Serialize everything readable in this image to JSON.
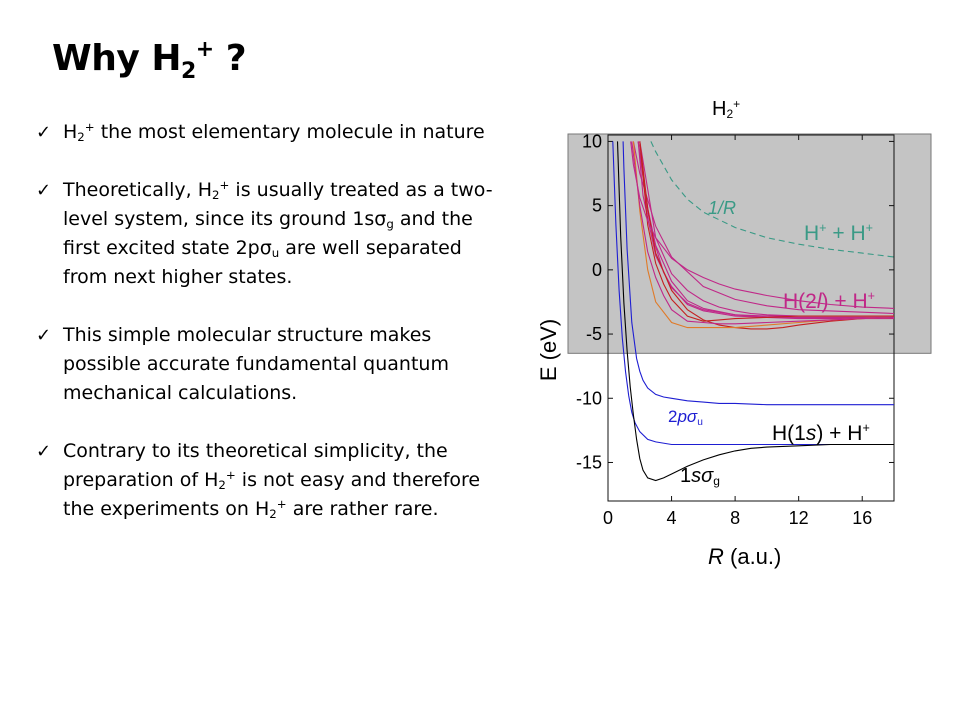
{
  "slide": {
    "title": {
      "pre": "Why H",
      "sub": "2",
      "sup": "+",
      "post": " ?"
    }
  },
  "bullets": [
    {
      "parts": [
        {
          "t": "H"
        },
        {
          "sub": "2"
        },
        {
          "sup": "+"
        },
        {
          "t": " the most elementary molecule in nature"
        }
      ]
    },
    {
      "parts": [
        {
          "t": "Theoretically, H"
        },
        {
          "sub": "2"
        },
        {
          "sup": "+"
        },
        {
          "t": " is usually treated as a two-level system, since its ground 1sσ"
        },
        {
          "sub": "g"
        },
        {
          "t": " and the first excited state 2pσ"
        },
        {
          "sub": "u"
        },
        {
          "t": " are well separated from next higher states."
        }
      ]
    },
    {
      "parts": [
        {
          "t": "This simple molecular structure makes possible accurate fundamental quantum mechanical calculations."
        }
      ]
    },
    {
      "parts": [
        {
          "t": "Contrary to its theoretical simplicity, the preparation of H"
        },
        {
          "sub": "2"
        },
        {
          "sup": "+"
        },
        {
          "t": " is not easy and therefore the experiments on H"
        },
        {
          "sub": "2"
        },
        {
          "sup": "+"
        },
        {
          "t": " are rather rare."
        }
      ]
    }
  ],
  "check_glyph": "✓",
  "chart_data": {
    "type": "line",
    "title": {
      "main": "H",
      "sub": "2",
      "sup": "+"
    },
    "xlabel": {
      "italic": "R",
      "rest": " (a.u.)"
    },
    "ylabel": "E (eV)",
    "xlim": [
      0,
      18
    ],
    "ylim": [
      -18,
      10.5
    ],
    "xticks": [
      "0",
      "4",
      "8",
      "12",
      "16"
    ],
    "xtick_values": [
      0,
      4,
      8,
      12,
      16
    ],
    "yticks": [
      "10",
      "5",
      "0",
      "-5",
      "-10",
      "-15"
    ],
    "ytick_values": [
      10,
      5,
      0,
      -5,
      -10,
      -15
    ],
    "shaded_region": {
      "ymin": -6.5,
      "ymax": 10.5
    },
    "colors": {
      "shade": "#c4c4c4",
      "ground": "#000000",
      "excited": "#1e1ed2",
      "coulomb": "#3a9a86",
      "upper": "#c02888",
      "orange": "#e07a28",
      "red": "#c42020"
    },
    "annotations": [
      {
        "id": "coulomb",
        "text": "1/R",
        "italic": true
      },
      {
        "id": "hh",
        "parts": [
          "H",
          "+",
          " + H",
          "+"
        ]
      },
      {
        "id": "h2l",
        "parts": [
          "H(2",
          "l",
          ") + H",
          "+"
        ]
      },
      {
        "id": "h1s",
        "parts": [
          "H(1",
          "s",
          ") + H",
          "+"
        ]
      },
      {
        "id": "s2p",
        "parts": [
          "2",
          "pσ",
          "u"
        ]
      },
      {
        "id": "s1s",
        "parts": [
          "1",
          "sσ",
          "g"
        ]
      }
    ],
    "series": [
      {
        "x": [
          0.95,
          1,
          1.2,
          1.5,
          1.8,
          2,
          2.2,
          2.5,
          3,
          3.5,
          4,
          5,
          6,
          7,
          8,
          10,
          12,
          14,
          16,
          18
        ],
        "y": [
          10,
          7.9,
          1.6,
          -4.1,
          -6.9,
          -7.9,
          -8.6,
          -9.2,
          -9.7,
          -9.9,
          -10.0,
          -10.2,
          -10.3,
          -10.4,
          -10.4,
          -10.5,
          -10.5,
          -10.5,
          -10.5,
          -10.5
        ]
      },
      {
        "x": [
          0.3,
          0.5,
          0.7,
          0.9,
          1.1,
          1.3,
          1.5,
          1.7,
          2,
          2.5,
          3,
          4,
          5,
          6,
          7,
          8,
          10,
          12,
          14,
          16,
          18
        ],
        "y": [
          10,
          3.5,
          -1.6,
          -5.3,
          -7.9,
          -9.8,
          -11.1,
          -11.9,
          -12.6,
          -13.2,
          -13.4,
          -13.6,
          -13.6,
          -13.6,
          -13.6,
          -13.6,
          -13.6,
          -13.6,
          -13.6,
          -13.6,
          -13.6
        ]
      },
      {
        "x": [
          0.6,
          0.8,
          1.0,
          1.2,
          1.4,
          1.6,
          1.8,
          2.0,
          2.2,
          2.5,
          3,
          3.5,
          4,
          5,
          6,
          7,
          8,
          9,
          10,
          12,
          14,
          16,
          18
        ],
        "y": [
          10,
          2.6,
          -2.6,
          -6.3,
          -9.1,
          -11.3,
          -13.2,
          -14.7,
          -15.6,
          -16.2,
          -16.4,
          -16.2,
          -15.9,
          -15.3,
          -14.8,
          -14.4,
          -14.1,
          -13.9,
          -13.8,
          -13.7,
          -13.6,
          -13.6,
          -13.6
        ]
      },
      {
        "x": [
          1.6,
          2,
          3,
          4,
          6,
          8,
          10,
          12,
          14,
          16,
          18
        ],
        "y": [
          10,
          7.5,
          3.4,
          1.0,
          -1.3,
          -2.3,
          -2.8,
          -3.1,
          -3.2,
          -3.3,
          -3.4
        ]
      },
      {
        "x": [
          1.9,
          2.2,
          3,
          4,
          5,
          6,
          8,
          10,
          12,
          14,
          16,
          18
        ],
        "y": [
          10,
          5.8,
          1.1,
          -1.4,
          -2.6,
          -3.1,
          -3.5,
          -3.6,
          -3.6,
          -3.6,
          -3.6,
          -3.6
        ]
      },
      {
        "x": [
          1.9,
          2.5,
          3,
          3.5,
          4,
          5,
          6,
          8,
          10,
          12,
          14,
          16,
          18
        ],
        "y": [
          10,
          4.5,
          1.8,
          -0.2,
          -1.3,
          -2.7,
          -3.2,
          -3.6,
          -3.7,
          -3.7,
          -3.7,
          -3.7,
          -3.7
        ]
      },
      {
        "x": [
          1.9,
          2.5,
          3,
          4,
          5,
          6,
          8,
          10,
          12,
          14,
          16,
          18
        ],
        "y": [
          10,
          4.8,
          1.9,
          -0.9,
          -2.4,
          -3.0,
          -3.5,
          -3.7,
          -3.8,
          -3.8,
          -3.8,
          -3.8
        ]
      },
      {
        "x": [
          2,
          3,
          4,
          5,
          6,
          7,
          8,
          9,
          10,
          12,
          14,
          16,
          18
        ],
        "y": [
          10,
          2.5,
          -0.3,
          -1.6,
          -2.4,
          -2.9,
          -3.2,
          -3.4,
          -3.5,
          -3.6,
          -3.6,
          -3.6,
          -3.6
        ]
      },
      {
        "x": [
          2,
          2.5,
          3,
          3.5,
          4,
          5,
          6,
          7,
          8,
          10,
          12,
          14,
          16,
          18
        ],
        "y": [
          10,
          3.5,
          0.5,
          -1.1,
          -2.3,
          -3.6,
          -4.0,
          -3.9,
          -3.8,
          -3.7,
          -3.6,
          -3.6,
          -3.6,
          -3.6
        ]
      },
      {
        "x": [
          2,
          2.5,
          3,
          4,
          5,
          6,
          7,
          8,
          9,
          10,
          11,
          12,
          14,
          16,
          18
        ],
        "y": [
          10,
          4.8,
          1.3,
          -1.6,
          -3.1,
          -3.9,
          -4.3,
          -4.5,
          -4.6,
          -4.6,
          -4.5,
          -4.3,
          -4.0,
          -3.8,
          -3.7
        ]
      },
      {
        "x": [
          1.6,
          2,
          2.5,
          3,
          4,
          5,
          6,
          7,
          8,
          10,
          12,
          14,
          16,
          18
        ],
        "y": [
          10,
          4.6,
          0.0,
          -2.5,
          -4.1,
          -4.5,
          -4.5,
          -4.5,
          -4.5,
          -4.3,
          -4.1,
          -3.9,
          -3.8,
          -3.7
        ]
      },
      {
        "x": [
          1.5,
          2,
          2.5,
          3,
          3.5,
          4,
          5,
          6,
          7,
          8,
          10,
          12,
          14,
          16,
          18
        ],
        "y": [
          10,
          5.0,
          1.4,
          -0.6,
          -2.0,
          -3.1,
          -4.0,
          -4.1,
          -4.2,
          -4.2,
          -4.1,
          -4.0,
          -3.9,
          -3.8,
          -3.7
        ]
      },
      {
        "x": [
          1.43,
          1.6,
          2,
          2.5,
          3,
          4,
          5,
          6,
          7,
          8,
          10,
          12,
          14,
          16,
          18
        ],
        "y": [
          10,
          8.2,
          5.6,
          3.8,
          2.5,
          0.9,
          0,
          -0.6,
          -1.1,
          -1.5,
          -2.0,
          -2.4,
          -2.7,
          -2.9,
          -3.0
        ]
      },
      {
        "x": [
          2.7,
          3,
          4,
          5,
          6,
          8,
          10,
          12,
          14,
          16,
          18
        ],
        "y": [
          10,
          9.2,
          7.0,
          5.5,
          4.5,
          3.3,
          2.5,
          2.0,
          1.6,
          1.3,
          1.0
        ]
      }
    ]
  }
}
